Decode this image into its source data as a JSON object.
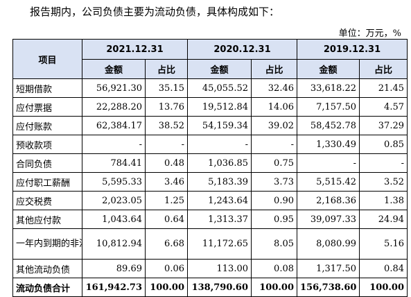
{
  "intro": "报告期内，公司负债主要为流动负债，具体构成如下：",
  "unit": "单位：万元，%",
  "header": {
    "item": "项目",
    "years": [
      "2021.12.31",
      "2020.12.31",
      "2019.12.31"
    ],
    "amount": "金额",
    "ratio": "占比"
  },
  "rows": [
    {
      "item": "短期借款",
      "v": [
        "56,921.30",
        "35.15",
        "45,055.52",
        "32.46",
        "33,618.22",
        "21.45"
      ]
    },
    {
      "item": "应付票据",
      "v": [
        "22,288.20",
        "13.76",
        "19,512.84",
        "14.06",
        "7,157.50",
        "4.57"
      ]
    },
    {
      "item": "应付账款",
      "v": [
        "62,384.17",
        "38.52",
        "54,159.34",
        "39.02",
        "58,452.78",
        "37.29"
      ]
    },
    {
      "item": "预收款项",
      "v": [
        "-",
        "-",
        "-",
        "-",
        "1,330.49",
        "0.85"
      ]
    },
    {
      "item": "合同负债",
      "v": [
        "784.41",
        "0.48",
        "1,036.85",
        "0.75",
        "-",
        "-"
      ]
    },
    {
      "item": "应付职工薪酬",
      "v": [
        "5,595.33",
        "3.46",
        "5,183.39",
        "3.73",
        "5,515.42",
        "3.52"
      ]
    },
    {
      "item": "应交税费",
      "v": [
        "2,023.05",
        "1.25",
        "1,243.64",
        "0.90",
        "2,168.36",
        "1.38"
      ]
    },
    {
      "item": "其他应付款",
      "v": [
        "1,043.64",
        "0.64",
        "1,313.37",
        "0.95",
        "39,097.33",
        "24.94"
      ]
    },
    {
      "item": "一年内到期的非流动负债",
      "v": [
        "10,812.94",
        "6.68",
        "11,172.65",
        "8.05",
        "8,080.99",
        "5.16"
      ]
    },
    {
      "item": "其他流动负债",
      "v": [
        "89.69",
        "0.06",
        "113.00",
        "0.08",
        "1,317.50",
        "0.84"
      ]
    },
    {
      "item": "流动负债合计",
      "v": [
        "161,942.73",
        "100.00",
        "138,790.60",
        "100.00",
        "156,738.60",
        "100.00"
      ]
    }
  ]
}
